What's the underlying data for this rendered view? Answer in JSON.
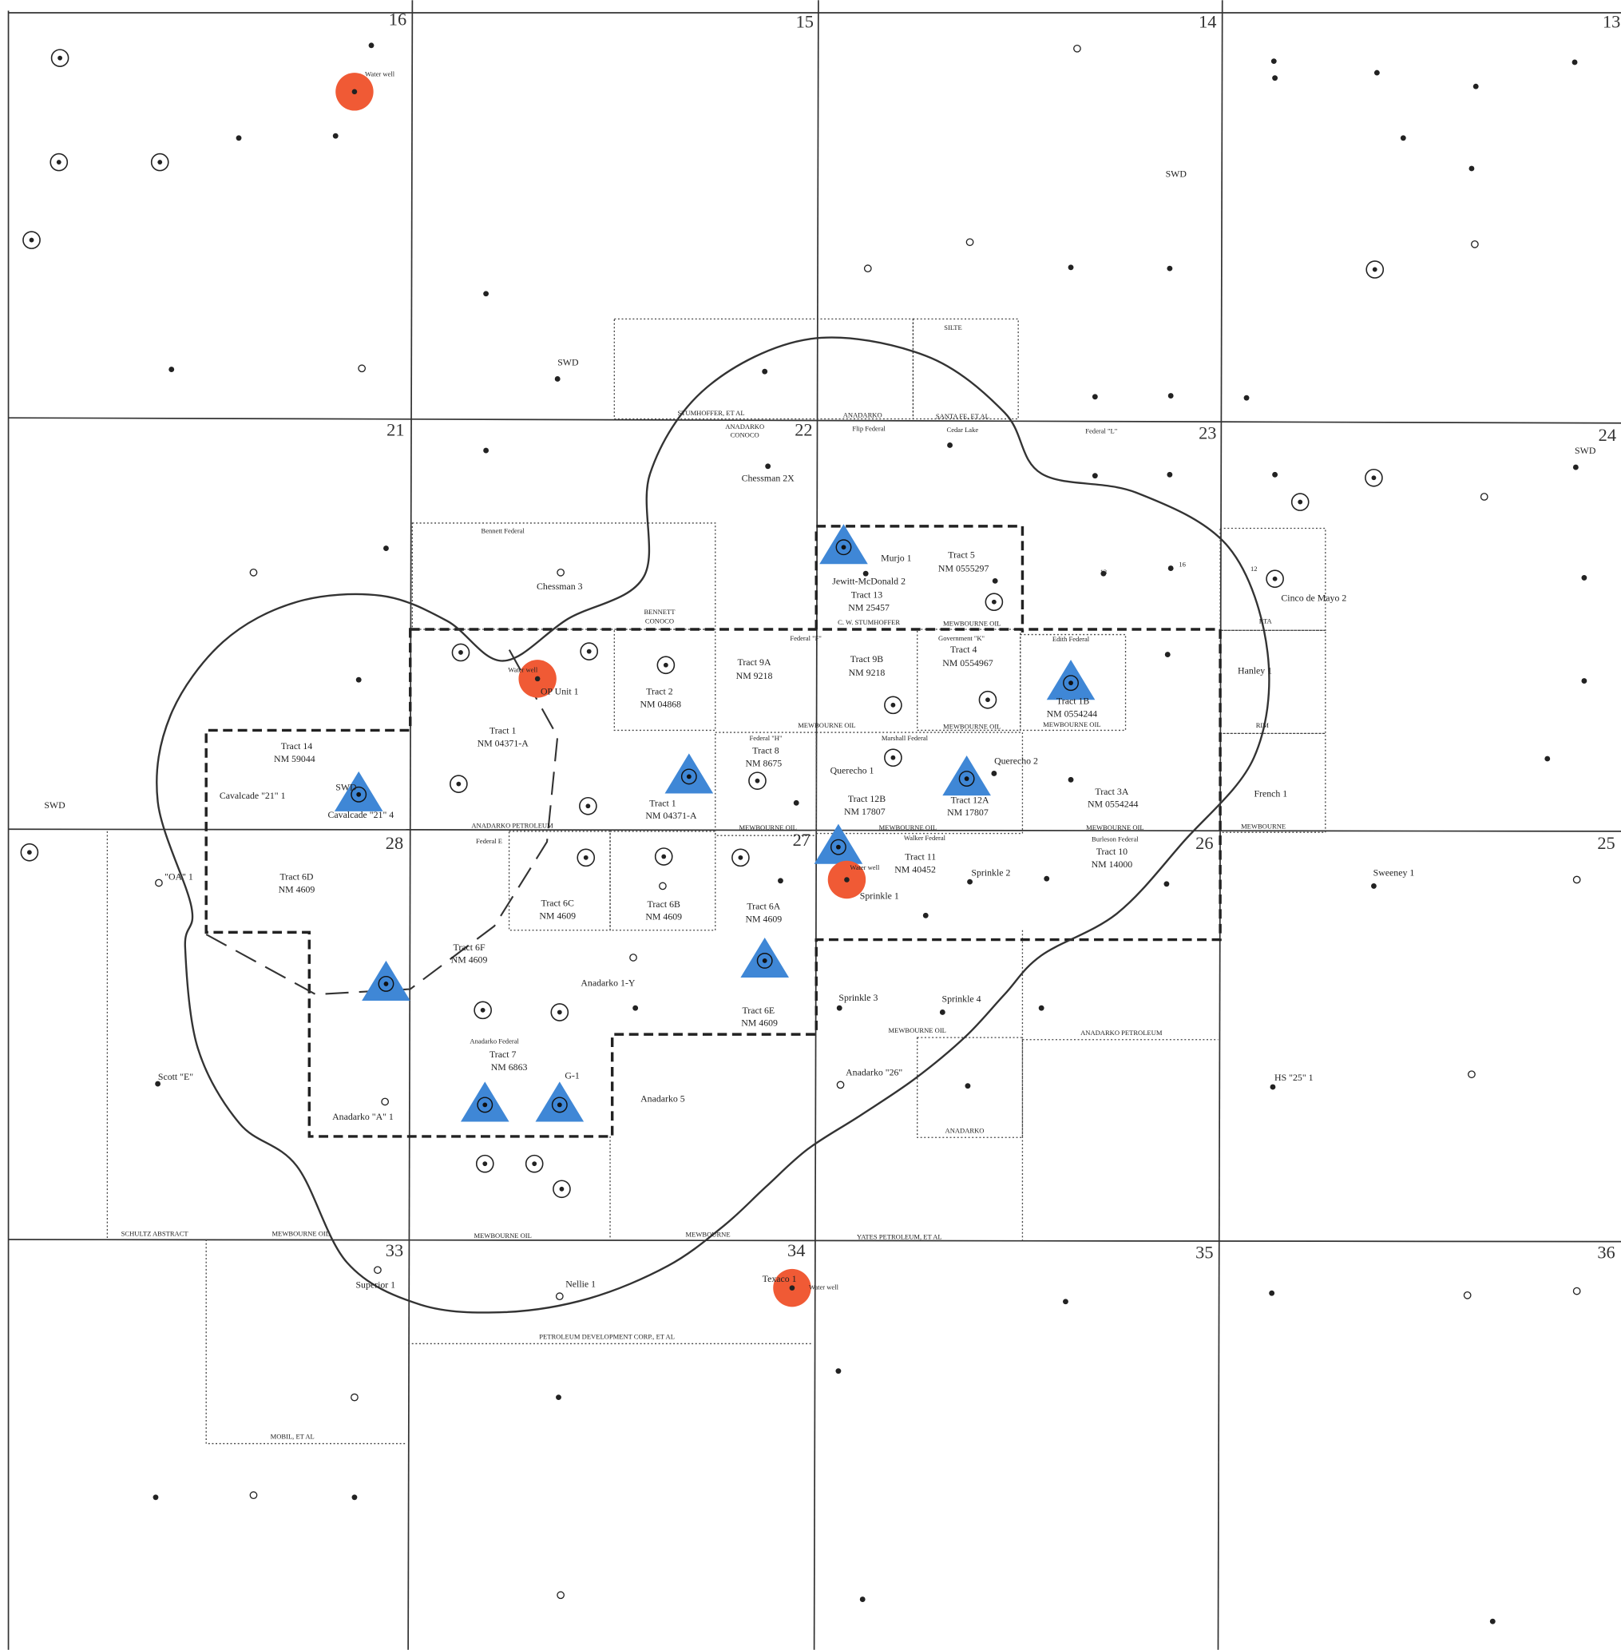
{
  "sections": [
    "16",
    "15",
    "14",
    "13",
    "21",
    "22",
    "23",
    "24",
    "28",
    "27",
    "26",
    "25",
    "33",
    "34",
    "35",
    "36"
  ],
  "labels": [
    "Water well",
    "SWD",
    "SWD",
    "SWD",
    "STUMHOFFER, ET AL",
    "ANADARKO",
    "SANTA FE, ET AL",
    "SILTE",
    "ANADARKO",
    "CONOCO",
    "Flip Federal",
    "Cedar Lake",
    "Federal \"L\"",
    "Chessman 2X",
    "Bennett Federal",
    "Chessman 3",
    "BENNETT",
    "CONOCO",
    "Murjo 1",
    "Tract 5",
    "NM 0555297",
    "Jewitt-McDonald 2",
    "Tract 13",
    "NM 25457",
    "C. W. STUMHOFFER",
    "MEWBOURNE OIL",
    "13",
    "16",
    "12",
    "Cinco de Mayo 2",
    "RTA",
    "Federal \"F\"",
    "Government \"K\"",
    "Edith Federal",
    "Tract 9A",
    "NM 9218",
    "Tract 9B",
    "NM 9218",
    "Tract 4",
    "NM 0554967",
    "Tract 2",
    "NM 04868",
    "Water well",
    "OP Unit 1",
    "Hanley 1",
    "Tract 1B",
    "NM 0554244",
    "MEWBOURNE OIL",
    "MEWBOURNE OIL",
    "MEWBOURNE OIL",
    "RIM",
    "Tract 1",
    "NM 04371-A",
    "Tract 14",
    "NM 59044",
    "Federal \"H\"",
    "Marshall Federal",
    "Tract 8",
    "NM 8675",
    "Querecho 2",
    "Querecho 1",
    "Tract 1",
    "NM 04371-A",
    "Tract 12B",
    "NM 17807",
    "Tract 12A",
    "NM 17807",
    "Tract 3A",
    "NM 0554244",
    "French 1",
    "Cavalcade \"21\" 1",
    "Cavalcade \"21\" 4",
    "SWD",
    "SWD",
    "ANADARKO PETROLEUM",
    "MEWBOURNE OIL",
    "MEWBOURNE OIL",
    "MEWBOURNE OIL",
    "MEWBOURNE",
    "Walker Federal",
    "Burleson Federal",
    "Federal E",
    "Tract 11",
    "NM 40452",
    "Tract 10",
    "NM 14000",
    "Water well",
    "Sprinkle 2",
    "Sweeney 1",
    "\"OA\" 1",
    "Tract 6D",
    "NM 4609",
    "Sprinkle 1",
    "Tract 6C",
    "NM 4609",
    "Tract 6B",
    "NM 4609",
    "Tract 6A",
    "NM 4609",
    "Tract 6F",
    "NM 4609",
    "Anadarko 1-Y",
    "Sprinkle 3",
    "Sprinkle 4",
    "Tract 6E",
    "NM 4609",
    "MEWBOURNE OIL",
    "ANADARKO PETROLEUM",
    "Anadarko Federal",
    "Tract 7",
    "NM 6863",
    "Anadarko \"26\"",
    "HS \"25\" 1",
    "Scott \"E\"",
    "G-1",
    "Anadarko 5",
    "Anadarko \"A\" 1",
    "ANADARKO",
    "SCHULTZ ABSTRACT",
    "MEWBOURNE OIL",
    "MEWBOURNE OIL",
    "MEWBOURNE",
    "YATES PETROLEUM, ET AL",
    "Superior 1",
    "Nellie 1",
    "Texaco 1",
    "Water well",
    "PETROLEUM DEVELOPMENT CORP., ET AL",
    "MOBIL, ET AL"
  ]
}
